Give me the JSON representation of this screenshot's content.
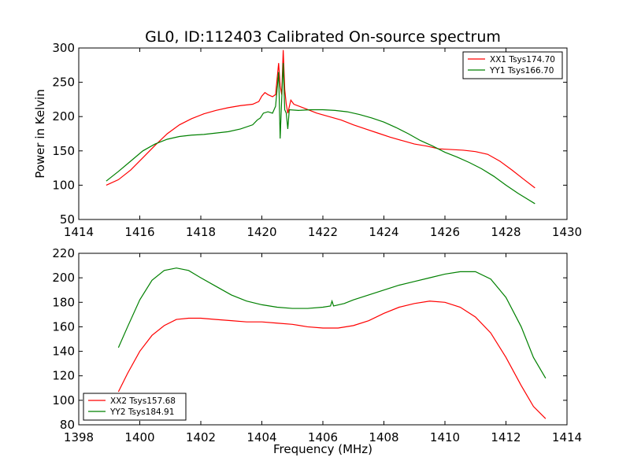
{
  "page_title": "GL0, ID:112403 Calibrated On-source spectrum",
  "chart_data": [
    {
      "type": "line",
      "title": "GL0, ID:112403 Calibrated On-source spectrum",
      "xlabel": "",
      "ylabel": "Power in Kelvin",
      "xlim": [
        1414,
        1430
      ],
      "ylim": [
        50,
        300
      ],
      "xticks": [
        1414,
        1416,
        1418,
        1420,
        1422,
        1424,
        1426,
        1428,
        1430
      ],
      "yticks": [
        50,
        100,
        150,
        200,
        250,
        300
      ],
      "legend_position": "top-right",
      "grid": false,
      "series": [
        {
          "name": "XX1 Tsys174.70",
          "color": "#ff0000",
          "points": [
            [
              1414.9,
              100
            ],
            [
              1415.3,
              108
            ],
            [
              1415.7,
              122
            ],
            [
              1416.1,
              140
            ],
            [
              1416.5,
              158
            ],
            [
              1416.9,
              175
            ],
            [
              1417.3,
              188
            ],
            [
              1417.7,
              197
            ],
            [
              1418.1,
              204
            ],
            [
              1418.5,
              209
            ],
            [
              1418.9,
              213
            ],
            [
              1419.3,
              216
            ],
            [
              1419.7,
              218
            ],
            [
              1419.9,
              222
            ],
            [
              1420.0,
              230
            ],
            [
              1420.1,
              235
            ],
            [
              1420.2,
              232
            ],
            [
              1420.35,
              229
            ],
            [
              1420.45,
              232
            ],
            [
              1420.55,
              278
            ],
            [
              1420.6,
              245
            ],
            [
              1420.65,
              232
            ],
            [
              1420.7,
              297
            ],
            [
              1420.75,
              240
            ],
            [
              1420.8,
              218
            ],
            [
              1420.85,
              205
            ],
            [
              1420.95,
              224
            ],
            [
              1421.05,
              218
            ],
            [
              1421.4,
              212
            ],
            [
              1421.8,
              205
            ],
            [
              1422.2,
              200
            ],
            [
              1422.6,
              195
            ],
            [
              1423.0,
              188
            ],
            [
              1423.4,
              182
            ],
            [
              1423.8,
              176
            ],
            [
              1424.2,
              170
            ],
            [
              1424.6,
              165
            ],
            [
              1425.0,
              160
            ],
            [
              1425.4,
              157
            ],
            [
              1425.8,
              153
            ],
            [
              1426.2,
              152
            ],
            [
              1426.6,
              151
            ],
            [
              1427.0,
              149
            ],
            [
              1427.4,
              145
            ],
            [
              1427.8,
              135
            ],
            [
              1428.2,
              122
            ],
            [
              1428.6,
              108
            ],
            [
              1428.95,
              96
            ]
          ]
        },
        {
          "name": "YY1 Tsys166.70",
          "color": "#008000",
          "points": [
            [
              1414.9,
              106
            ],
            [
              1415.3,
              120
            ],
            [
              1415.7,
              135
            ],
            [
              1416.1,
              150
            ],
            [
              1416.5,
              160
            ],
            [
              1416.9,
              167
            ],
            [
              1417.3,
              171
            ],
            [
              1417.7,
              173
            ],
            [
              1418.1,
              174
            ],
            [
              1418.5,
              176
            ],
            [
              1418.9,
              178
            ],
            [
              1419.3,
              182
            ],
            [
              1419.7,
              188
            ],
            [
              1419.85,
              195
            ],
            [
              1419.95,
              198
            ],
            [
              1420.05,
              205
            ],
            [
              1420.2,
              207
            ],
            [
              1420.35,
              205
            ],
            [
              1420.45,
              215
            ],
            [
              1420.5,
              240
            ],
            [
              1420.55,
              265
            ],
            [
              1420.6,
              168
            ],
            [
              1420.65,
              225
            ],
            [
              1420.7,
              278
            ],
            [
              1420.75,
              210
            ],
            [
              1420.8,
              205
            ],
            [
              1420.85,
              182
            ],
            [
              1420.9,
              210
            ],
            [
              1421.2,
              209
            ],
            [
              1421.6,
              210
            ],
            [
              1422.0,
              210
            ],
            [
              1422.4,
              209
            ],
            [
              1422.8,
              207
            ],
            [
              1423.2,
              203
            ],
            [
              1423.6,
              198
            ],
            [
              1424.0,
              192
            ],
            [
              1424.4,
              184
            ],
            [
              1424.8,
              175
            ],
            [
              1425.2,
              165
            ],
            [
              1425.6,
              157
            ],
            [
              1426.0,
              148
            ],
            [
              1426.4,
              141
            ],
            [
              1426.8,
              133
            ],
            [
              1427.2,
              124
            ],
            [
              1427.6,
              113
            ],
            [
              1428.0,
              100
            ],
            [
              1428.4,
              88
            ],
            [
              1428.95,
              73
            ]
          ]
        }
      ]
    },
    {
      "type": "line",
      "title": "",
      "xlabel": "Frequency (MHz)",
      "ylabel": "",
      "xlim": [
        1398,
        1414
      ],
      "ylim": [
        80,
        220
      ],
      "xticks": [
        1398,
        1400,
        1402,
        1404,
        1406,
        1408,
        1410,
        1412,
        1414
      ],
      "yticks": [
        80,
        100,
        120,
        140,
        160,
        180,
        200,
        220
      ],
      "legend_position": "bottom-left",
      "grid": false,
      "series": [
        {
          "name": "XX2 Tsys157.68",
          "color": "#ff0000",
          "points": [
            [
              1399.3,
              107
            ],
            [
              1399.6,
              122
            ],
            [
              1400.0,
              140
            ],
            [
              1400.4,
              153
            ],
            [
              1400.8,
              161
            ],
            [
              1401.2,
              166
            ],
            [
              1401.6,
              167
            ],
            [
              1402.0,
              167
            ],
            [
              1402.5,
              166
            ],
            [
              1403.0,
              165
            ],
            [
              1403.5,
              164
            ],
            [
              1404.0,
              164
            ],
            [
              1404.5,
              163
            ],
            [
              1405.0,
              162
            ],
            [
              1405.5,
              160
            ],
            [
              1406.0,
              159
            ],
            [
              1406.5,
              159
            ],
            [
              1407.0,
              161
            ],
            [
              1407.5,
              165
            ],
            [
              1408.0,
              171
            ],
            [
              1408.5,
              176
            ],
            [
              1409.0,
              179
            ],
            [
              1409.5,
              181
            ],
            [
              1410.0,
              180
            ],
            [
              1410.5,
              176
            ],
            [
              1411.0,
              168
            ],
            [
              1411.5,
              155
            ],
            [
              1412.0,
              135
            ],
            [
              1412.5,
              112
            ],
            [
              1412.9,
              95
            ],
            [
              1413.3,
              85
            ]
          ]
        },
        {
          "name": "YY2 Tsys184.91",
          "color": "#008000",
          "points": [
            [
              1399.3,
              143
            ],
            [
              1399.6,
              160
            ],
            [
              1400.0,
              182
            ],
            [
              1400.4,
              198
            ],
            [
              1400.8,
              206
            ],
            [
              1401.2,
              208
            ],
            [
              1401.6,
              206
            ],
            [
              1402.0,
              200
            ],
            [
              1402.5,
              193
            ],
            [
              1403.0,
              186
            ],
            [
              1403.5,
              181
            ],
            [
              1404.0,
              178
            ],
            [
              1404.5,
              176
            ],
            [
              1405.0,
              175
            ],
            [
              1405.5,
              175
            ],
            [
              1406.0,
              176
            ],
            [
              1406.25,
              177
            ],
            [
              1406.3,
              181
            ],
            [
              1406.35,
              177
            ],
            [
              1406.7,
              179
            ],
            [
              1407.0,
              182
            ],
            [
              1407.5,
              186
            ],
            [
              1408.0,
              190
            ],
            [
              1408.5,
              194
            ],
            [
              1409.0,
              197
            ],
            [
              1409.5,
              200
            ],
            [
              1410.0,
              203
            ],
            [
              1410.5,
              205
            ],
            [
              1411.0,
              205
            ],
            [
              1411.5,
              199
            ],
            [
              1412.0,
              184
            ],
            [
              1412.5,
              160
            ],
            [
              1412.9,
              135
            ],
            [
              1413.3,
              118
            ]
          ]
        }
      ]
    }
  ]
}
